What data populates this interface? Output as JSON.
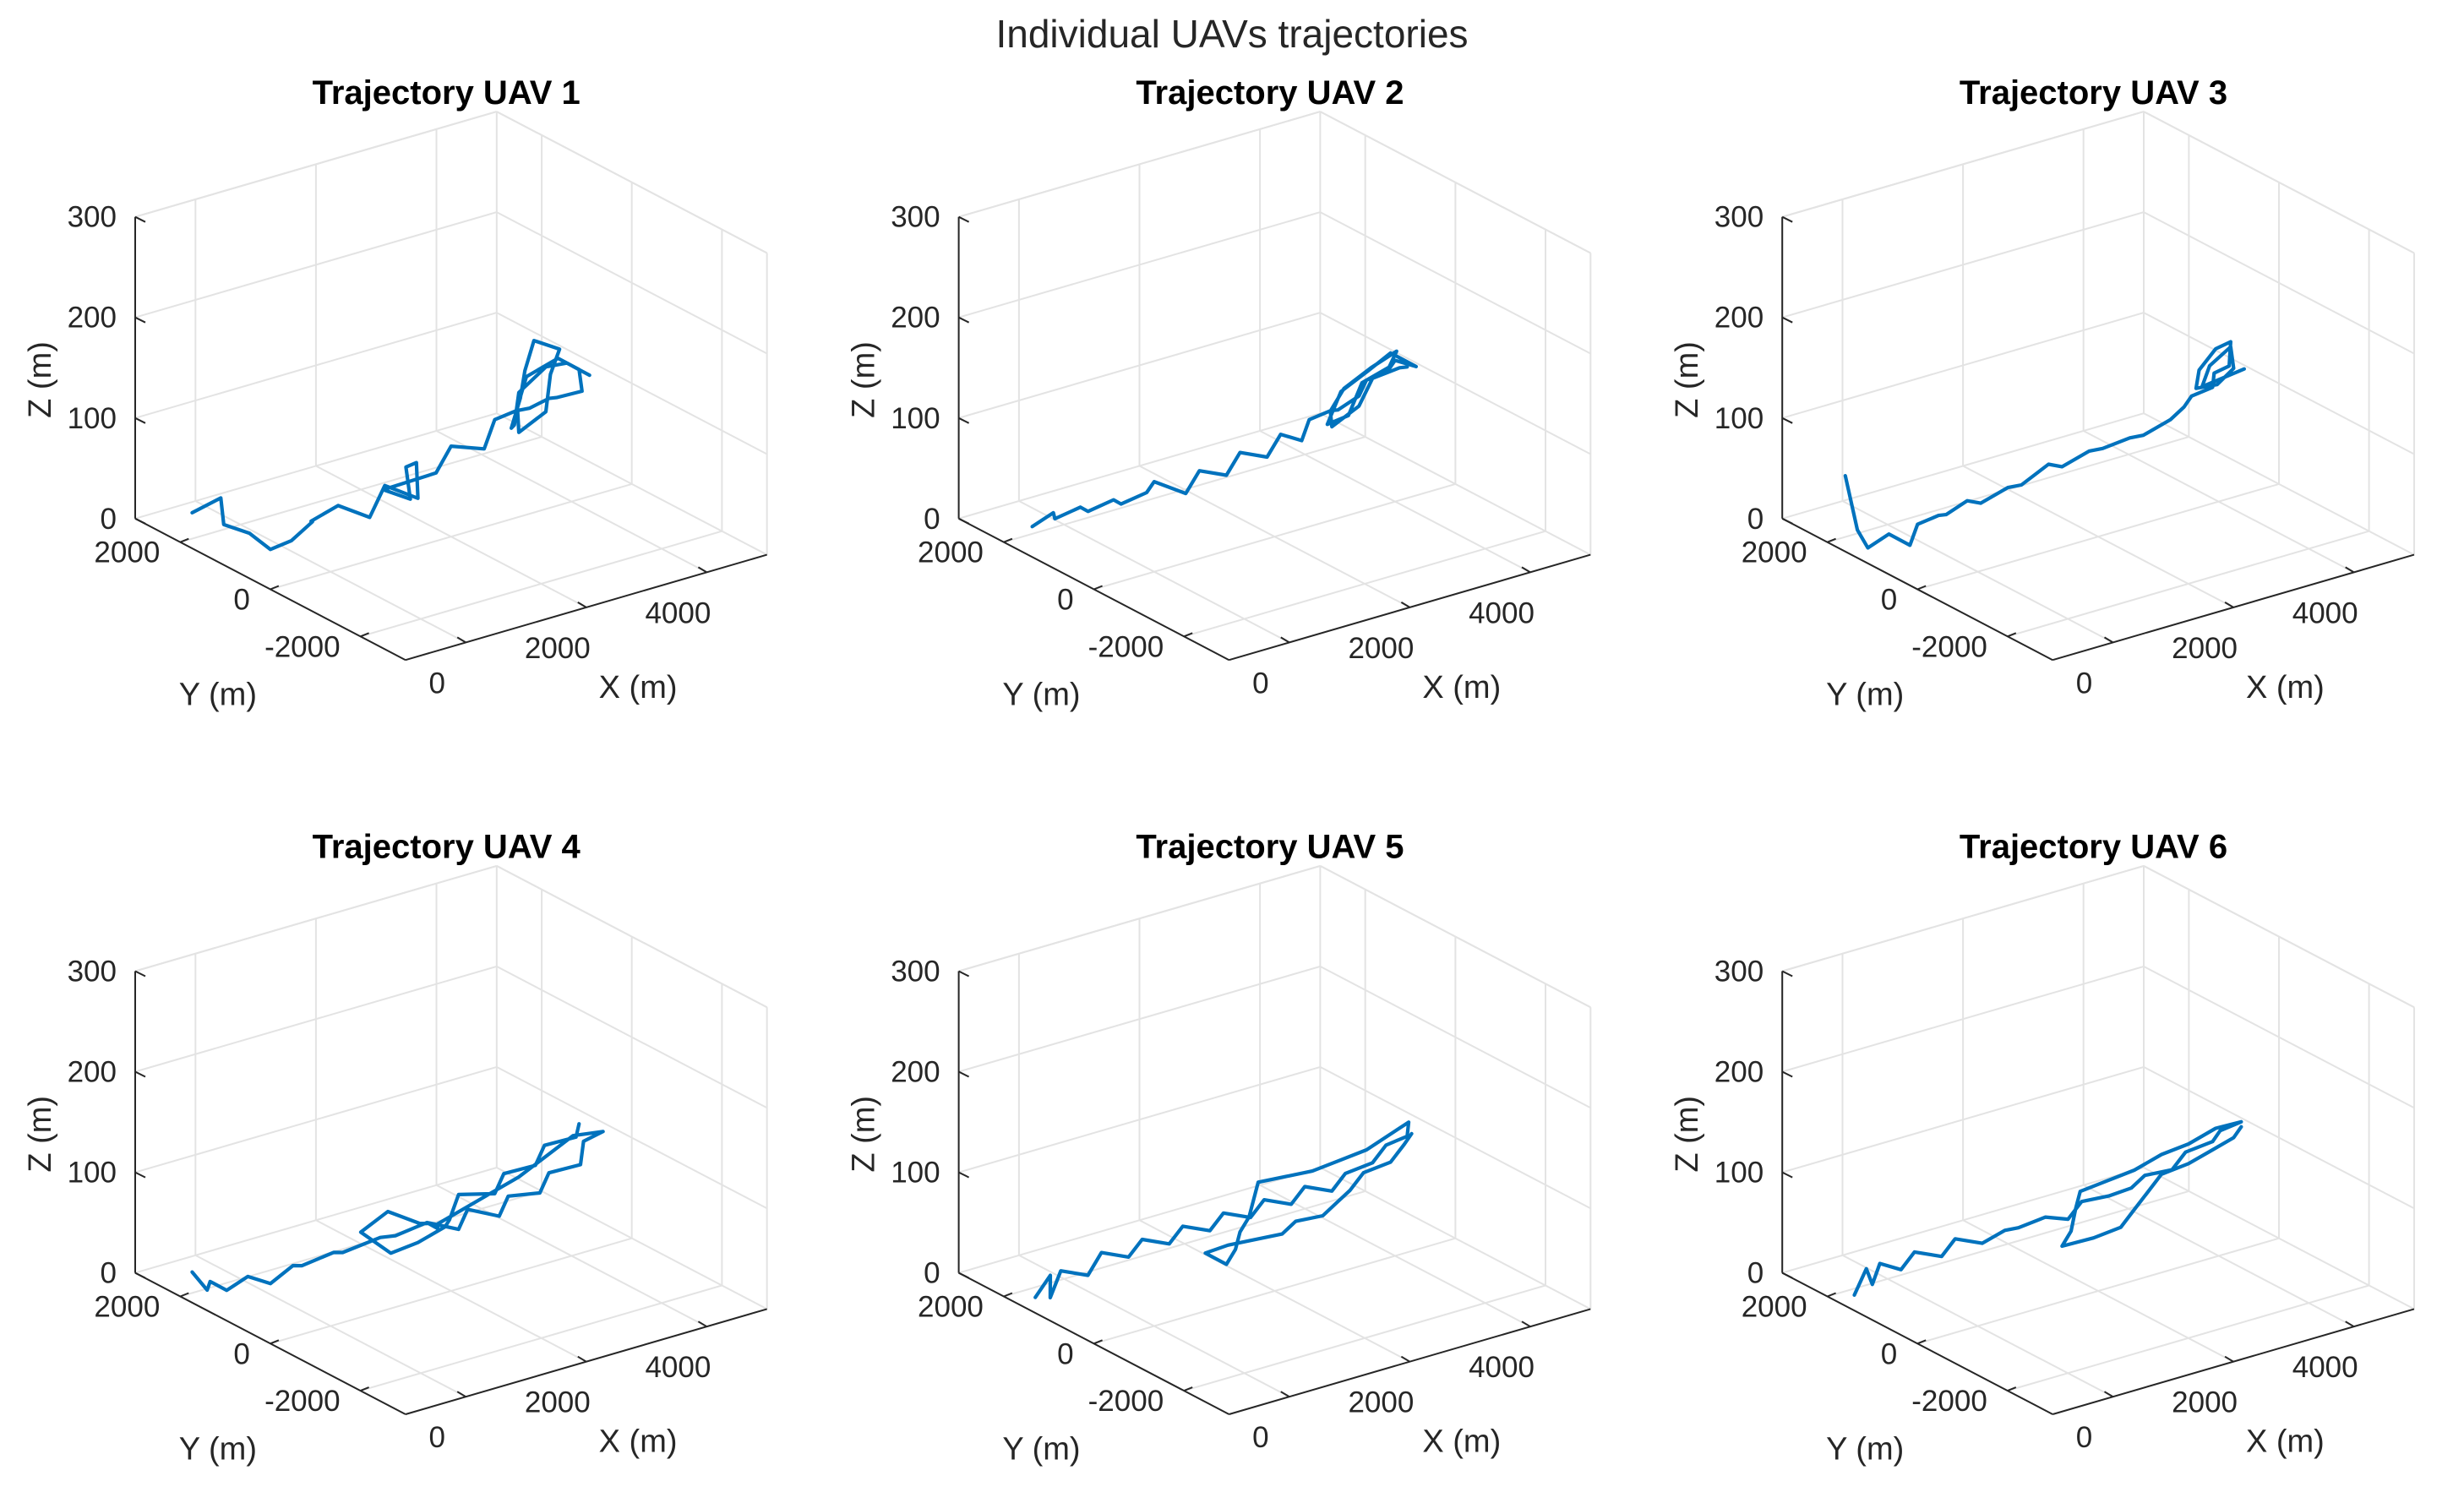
{
  "figure_title": "Individual UAVs trajectories",
  "chart_data": [
    {
      "type": "line3d",
      "title": "Trajectory UAV 1",
      "xlabel": "X (m)",
      "ylabel": "Y (m)",
      "zlabel": "Z (m)",
      "xlim": [
        -1000,
        5000
      ],
      "ylim": [
        -3000,
        3000
      ],
      "zlim": [
        0,
        300
      ],
      "xticks": [
        "0",
        "2000",
        "4000"
      ],
      "yticks": [
        "-2000",
        "0",
        "2000"
      ],
      "zticks": [
        "0",
        "100",
        "200",
        "300"
      ],
      "grid": true,
      "series": [
        {
          "name": "UAV 1",
          "x": [
            -1400,
            -1000,
            -1100,
            -900,
            -700,
            -500,
            -300,
            -100,
            200,
            500,
            900,
            1300,
            1500,
            1400,
            1100,
            800,
            1600,
            2000,
            2400,
            2800,
            3000,
            3300,
            3400,
            3600,
            3800,
            3900,
            3700,
            3400,
            3100,
            2900,
            3200,
            3500,
            3800,
            3600,
            3300,
            3000,
            2700,
            2900,
            3200,
            3500,
            3700,
            3900,
            4000
          ],
          "y": [
            1200,
            1100,
            900,
            600,
            400,
            200,
            0,
            300,
            100,
            -200,
            0,
            -200,
            100,
            200,
            -300,
            -100,
            -200,
            0,
            -200,
            100,
            -100,
            0,
            -300,
            -200,
            -500,
            -300,
            -100,
            200,
            0,
            -300,
            -500,
            -200,
            0,
            300,
            100,
            -200,
            -400,
            -200,
            100,
            -100,
            -300,
            -200,
            -400
          ],
          "z": [
            55,
            65,
            45,
            40,
            25,
            35,
            55,
            45,
            60,
            50,
            70,
            55,
            80,
            75,
            60,
            70,
            75,
            90,
            85,
            100,
            110,
            105,
            120,
            115,
            125,
            140,
            150,
            130,
            110,
            95,
            115,
            140,
            155,
            160,
            140,
            125,
            105,
            100,
            120,
            145,
            150,
            140,
            135
          ]
        }
      ]
    },
    {
      "type": "line3d",
      "title": "Trajectory UAV 2",
      "xlabel": "X (m)",
      "ylabel": "Y (m)",
      "zlabel": "Z (m)",
      "xlim": [
        -1000,
        5000
      ],
      "ylim": [
        -3000,
        3000
      ],
      "zlim": [
        0,
        300
      ],
      "xticks": [
        "0",
        "2000",
        "4000"
      ],
      "yticks": [
        "-2000",
        "0",
        "2000"
      ],
      "zticks": [
        "0",
        "100",
        "200",
        "300"
      ],
      "grid": true,
      "series": [
        {
          "name": "UAV 2",
          "x": [
            -1200,
            -1000,
            -900,
            -700,
            -500,
            -300,
            -100,
            100,
            300,
            600,
            900,
            1200,
            1500,
            1800,
            2100,
            2300,
            2500,
            2700,
            2900,
            3100,
            3300,
            3500,
            3700,
            3900,
            3700,
            3400,
            3100,
            2800,
            3000,
            3300,
            3600,
            3800,
            3600,
            3300,
            3000,
            2800,
            3100,
            3400,
            3700,
            3900
          ],
          "y": [
            1100,
            900,
            1000,
            700,
            800,
            500,
            600,
            300,
            400,
            100,
            200,
            0,
            100,
            -100,
            0,
            -200,
            -100,
            -300,
            -200,
            -400,
            -300,
            -500,
            -400,
            -600,
            -300,
            -200,
            0,
            -100,
            -300,
            -200,
            -400,
            -300,
            0,
            200,
            100,
            -200,
            -400,
            -300,
            -500,
            -400
          ],
          "z": [
            40,
            55,
            45,
            60,
            50,
            65,
            55,
            70,
            75,
            65,
            80,
            75,
            90,
            85,
            100,
            95,
            110,
            120,
            115,
            130,
            140,
            150,
            155,
            150,
            160,
            145,
            125,
            100,
            110,
            135,
            150,
            160,
            140,
            120,
            105,
            100,
            120,
            140,
            150,
            145
          ]
        }
      ]
    },
    {
      "type": "line3d",
      "title": "Trajectory UAV 3",
      "xlabel": "X (m)",
      "ylabel": "Y (m)",
      "zlabel": "Z (m)",
      "xlim": [
        -1000,
        5000
      ],
      "ylim": [
        -3000,
        3000
      ],
      "zlim": [
        0,
        300
      ],
      "xticks": [
        "0",
        "2000",
        "4000"
      ],
      "yticks": [
        "-2000",
        "0",
        "2000"
      ],
      "zticks": [
        "0",
        "100",
        "200",
        "300"
      ],
      "grid": true,
      "series": [
        {
          "name": "UAV 3",
          "x": [
            -1300,
            -1250,
            -1300,
            -1100,
            -900,
            -700,
            -500,
            -300,
            -100,
            200,
            500,
            800,
            1100,
            1400,
            1700,
            2000,
            2300,
            2600,
            2900,
            3200,
            3400,
            3600,
            3700,
            3800,
            3900,
            3800,
            3600,
            3400,
            3600,
            3800,
            3900,
            3700,
            3500,
            3700,
            3900
          ],
          "y": [
            1200,
            1000,
            700,
            500,
            300,
            400,
            200,
            300,
            100,
            200,
            0,
            100,
            -100,
            0,
            -200,
            -100,
            -300,
            -200,
            -400,
            -300,
            -200,
            -400,
            -300,
            -500,
            -400,
            -200,
            -100,
            -300,
            -500,
            -600,
            -400,
            -200,
            -300,
            -500,
            -700
          ],
          "z": [
            90,
            40,
            30,
            45,
            35,
            50,
            60,
            55,
            70,
            60,
            75,
            70,
            90,
            80,
            95,
            90,
            100,
            95,
            110,
            115,
            120,
            130,
            140,
            150,
            170,
            160,
            140,
            130,
            135,
            150,
            165,
            145,
            130,
            140,
            150
          ]
        }
      ]
    },
    {
      "type": "line3d",
      "title": "Trajectory UAV 4",
      "xlabel": "X (m)",
      "ylabel": "Y (m)",
      "zlabel": "Z (m)",
      "xlim": [
        -1000,
        5000
      ],
      "ylim": [
        -3000,
        3000
      ],
      "zlim": [
        0,
        300
      ],
      "xticks": [
        "0",
        "2000",
        "4000"
      ],
      "yticks": [
        "-2000",
        "0",
        "2000"
      ],
      "zticks": [
        "0",
        "100",
        "200",
        "300"
      ],
      "grid": true,
      "series": [
        {
          "name": "UAV 4",
          "x": [
            -1400,
            -1300,
            -1400,
            -1200,
            -1000,
            -700,
            -400,
            -100,
            200,
            500,
            900,
            1300,
            1600,
            1900,
            2200,
            2500,
            2800,
            3100,
            3400,
            3700,
            3900,
            4000,
            3800,
            3500,
            3200,
            2900,
            2600,
            2300,
            2000,
            1700,
            1400,
            1100,
            800,
            1000,
            1300,
            1600,
            1900,
            2200,
            2500,
            2800,
            3100,
            3400,
            3700,
            3900
          ],
          "y": [
            1200,
            1000,
            800,
            700,
            500,
            400,
            300,
            500,
            200,
            400,
            100,
            300,
            0,
            -300,
            -100,
            -400,
            -200,
            -500,
            -300,
            -600,
            -400,
            -700,
            -300,
            -100,
            100,
            300,
            500,
            700,
            300,
            100,
            -100,
            200,
            400,
            0,
            -200,
            -400,
            -100,
            100,
            -300,
            -100,
            -400,
            -200,
            -500,
            -300
          ],
          "z": [
            50,
            35,
            50,
            40,
            55,
            45,
            60,
            50,
            65,
            55,
            70,
            60,
            75,
            70,
            80,
            75,
            85,
            90,
            100,
            110,
            125,
            140,
            130,
            110,
            90,
            75,
            60,
            45,
            55,
            70,
            80,
            90,
            70,
            55,
            65,
            80,
            75,
            90,
            95,
            105,
            115,
            125,
            135,
            140
          ]
        }
      ]
    },
    {
      "type": "line3d",
      "title": "Trajectory UAV 5",
      "xlabel": "X (m)",
      "ylabel": "Y (m)",
      "zlabel": "Z (m)",
      "xlim": [
        -1000,
        5000
      ],
      "ylim": [
        -3000,
        3000
      ],
      "zlim": [
        0,
        300
      ],
      "xticks": [
        "0",
        "2000",
        "4000"
      ],
      "yticks": [
        "-2000",
        "0",
        "2000"
      ],
      "zticks": [
        "0",
        "100",
        "200",
        "300"
      ],
      "grid": true,
      "series": [
        {
          "name": "UAV 5",
          "x": [
            -1300,
            -1200,
            -1350,
            -1100,
            -800,
            -500,
            -200,
            100,
            400,
            700,
            1000,
            1300,
            1600,
            1900,
            2200,
            2500,
            2800,
            3100,
            3400,
            3700,
            3900,
            4000,
            3800,
            3600,
            3300,
            3000,
            2700,
            2400,
            2100,
            1800,
            1500,
            1200,
            900,
            700,
            1000,
            1300,
            1600,
            1900,
            2200,
            2500,
            2800,
            3100,
            3400,
            3700,
            3900
          ],
          "y": [
            900,
            700,
            500,
            600,
            400,
            500,
            300,
            400,
            200,
            300,
            100,
            200,
            0,
            100,
            -100,
            0,
            -200,
            -100,
            -300,
            -200,
            -400,
            -300,
            -100,
            100,
            300,
            500,
            700,
            900,
            600,
            300,
            100,
            -200,
            -400,
            -200,
            -300,
            -500,
            -700,
            -600,
            -800,
            -700,
            -600,
            -500,
            -700,
            -600,
            -500
          ],
          "z": [
            30,
            55,
            40,
            60,
            55,
            70,
            65,
            75,
            70,
            80,
            75,
            85,
            80,
            90,
            85,
            95,
            90,
            100,
            110,
            120,
            130,
            140,
            125,
            110,
            100,
            90,
            85,
            80,
            75,
            70,
            65,
            60,
            55,
            65,
            70,
            75,
            80,
            85,
            90,
            95,
            100,
            110,
            120,
            130,
            135
          ]
        }
      ]
    },
    {
      "type": "line3d",
      "title": "Trajectory UAV 6",
      "xlabel": "X (m)",
      "ylabel": "Y (m)",
      "zlabel": "Z (m)",
      "xlim": [
        -1000,
        5000
      ],
      "ylim": [
        -3000,
        3000
      ],
      "zlim": [
        0,
        300
      ],
      "xticks": [
        "0",
        "2000",
        "4000"
      ],
      "yticks": [
        "-2000",
        "0",
        "2000"
      ],
      "zticks": [
        "0",
        "100",
        "200",
        "300"
      ],
      "grid": true,
      "series": [
        {
          "name": "UAV 6",
          "x": [
            -1300,
            -1250,
            -1300,
            -1100,
            -900,
            -600,
            -300,
            0,
            300,
            600,
            900,
            1200,
            1500,
            1800,
            2100,
            2400,
            2700,
            3000,
            3300,
            3600,
            3800,
            4000,
            3800,
            3500,
            3200,
            2900,
            2600,
            2300,
            2000,
            1700,
            1400,
            1700,
            2000,
            2300,
            2600,
            2900,
            3200,
            3500,
            3800,
            4000
          ],
          "y": [
            1000,
            800,
            600,
            700,
            500,
            600,
            400,
            500,
            300,
            200,
            300,
            100,
            0,
            100,
            -100,
            -200,
            -100,
            -300,
            -200,
            -400,
            -300,
            -500,
            -200,
            0,
            200,
            400,
            600,
            800,
            500,
            200,
            0,
            -300,
            -500,
            -400,
            -300,
            -200,
            -400,
            -500,
            -600,
            -500
          ],
          "z": [
            30,
            60,
            50,
            65,
            60,
            70,
            65,
            75,
            70,
            80,
            75,
            85,
            80,
            90,
            95,
            100,
            105,
            110,
            120,
            130,
            135,
            145,
            135,
            120,
            110,
            95,
            85,
            75,
            70,
            60,
            55,
            65,
            75,
            85,
            95,
            105,
            115,
            125,
            135,
            140
          ]
        }
      ]
    }
  ]
}
